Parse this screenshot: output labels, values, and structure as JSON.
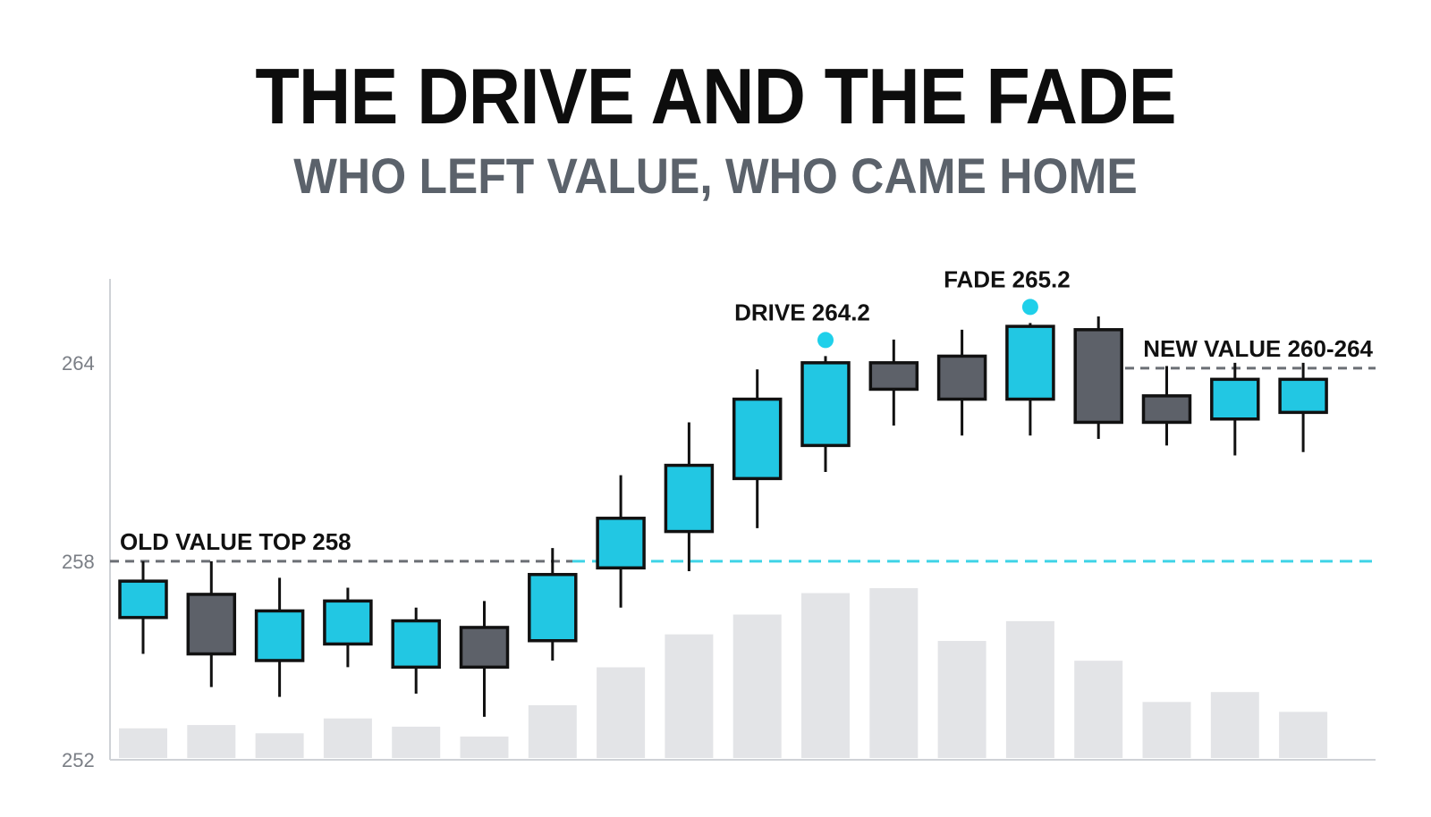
{
  "header": {
    "title": "THE DRIVE AND THE FADE",
    "subtitle": "WHO LEFT VALUE, WHO CAME HOME"
  },
  "colors": {
    "up": "#22c7e3",
    "down": "#5d6169",
    "volume": "#e3e4e7",
    "axis": "#cfd2d6",
    "ref_old": "#6b6f75",
    "ref_cyan": "#3fd3e6",
    "ref_new": "#6b6f75",
    "marker": "#1fd0ea"
  },
  "chart_data": {
    "type": "candlestick",
    "title": "THE DRIVE AND THE FADE",
    "subtitle": "WHO LEFT VALUE, WHO CAME HOME",
    "y_ticks": [
      252,
      258,
      264
    ],
    "ylim": [
      252,
      266.4
    ],
    "grid": false,
    "candles": [
      {
        "open": 256.3,
        "high": 258.0,
        "low": 255.2,
        "close": 257.4
      },
      {
        "open": 257.0,
        "high": 258.0,
        "low": 254.2,
        "close": 255.2
      },
      {
        "open": 255.0,
        "high": 257.5,
        "low": 253.9,
        "close": 256.5
      },
      {
        "open": 255.5,
        "high": 257.2,
        "low": 254.8,
        "close": 256.8
      },
      {
        "open": 254.8,
        "high": 256.6,
        "low": 254.0,
        "close": 256.2
      },
      {
        "open": 256.0,
        "high": 256.8,
        "low": 253.3,
        "close": 254.8
      },
      {
        "open": 255.6,
        "high": 258.4,
        "low": 255.0,
        "close": 257.6
      },
      {
        "open": 257.8,
        "high": 260.6,
        "low": 256.6,
        "close": 259.3
      },
      {
        "open": 258.9,
        "high": 262.2,
        "low": 257.7,
        "close": 260.9
      },
      {
        "open": 260.5,
        "high": 263.8,
        "low": 259.0,
        "close": 262.9
      },
      {
        "open": 261.5,
        "high": 264.2,
        "low": 260.7,
        "close": 264.0
      },
      {
        "open": 264.0,
        "high": 264.7,
        "low": 262.1,
        "close": 263.2
      },
      {
        "open": 264.2,
        "high": 265.0,
        "low": 261.8,
        "close": 262.9
      },
      {
        "open": 262.9,
        "high": 265.2,
        "low": 261.8,
        "close": 265.1
      },
      {
        "open": 265.0,
        "high": 265.4,
        "low": 261.7,
        "close": 262.2
      },
      {
        "open": 263.0,
        "high": 263.9,
        "low": 261.5,
        "close": 262.2
      },
      {
        "open": 262.3,
        "high": 264.0,
        "low": 261.2,
        "close": 263.5
      },
      {
        "open": 262.5,
        "high": 264.0,
        "low": 261.3,
        "close": 263.5
      }
    ],
    "volume_relative": [
      0.18,
      0.2,
      0.15,
      0.24,
      0.19,
      0.13,
      0.32,
      0.55,
      0.75,
      0.87,
      1.0,
      1.03,
      0.71,
      0.83,
      0.59,
      0.34,
      0.4,
      0.28
    ],
    "reference_lines": [
      {
        "label": "OLD VALUE TOP 258",
        "y": 258,
        "style": "dashed",
        "color_key": "ref_old"
      },
      {
        "label": "",
        "y": 258,
        "style": "dashed",
        "color_key": "ref_cyan"
      },
      {
        "label": "NEW VALUE 260-264",
        "y": 264,
        "style": "dashed",
        "color_key": "ref_new"
      }
    ],
    "markers": [
      {
        "label": "DRIVE 264.2",
        "candle_index": 10,
        "y": 264.2
      },
      {
        "label": "FADE 265.2",
        "candle_index": 13,
        "y": 265.2
      }
    ]
  }
}
